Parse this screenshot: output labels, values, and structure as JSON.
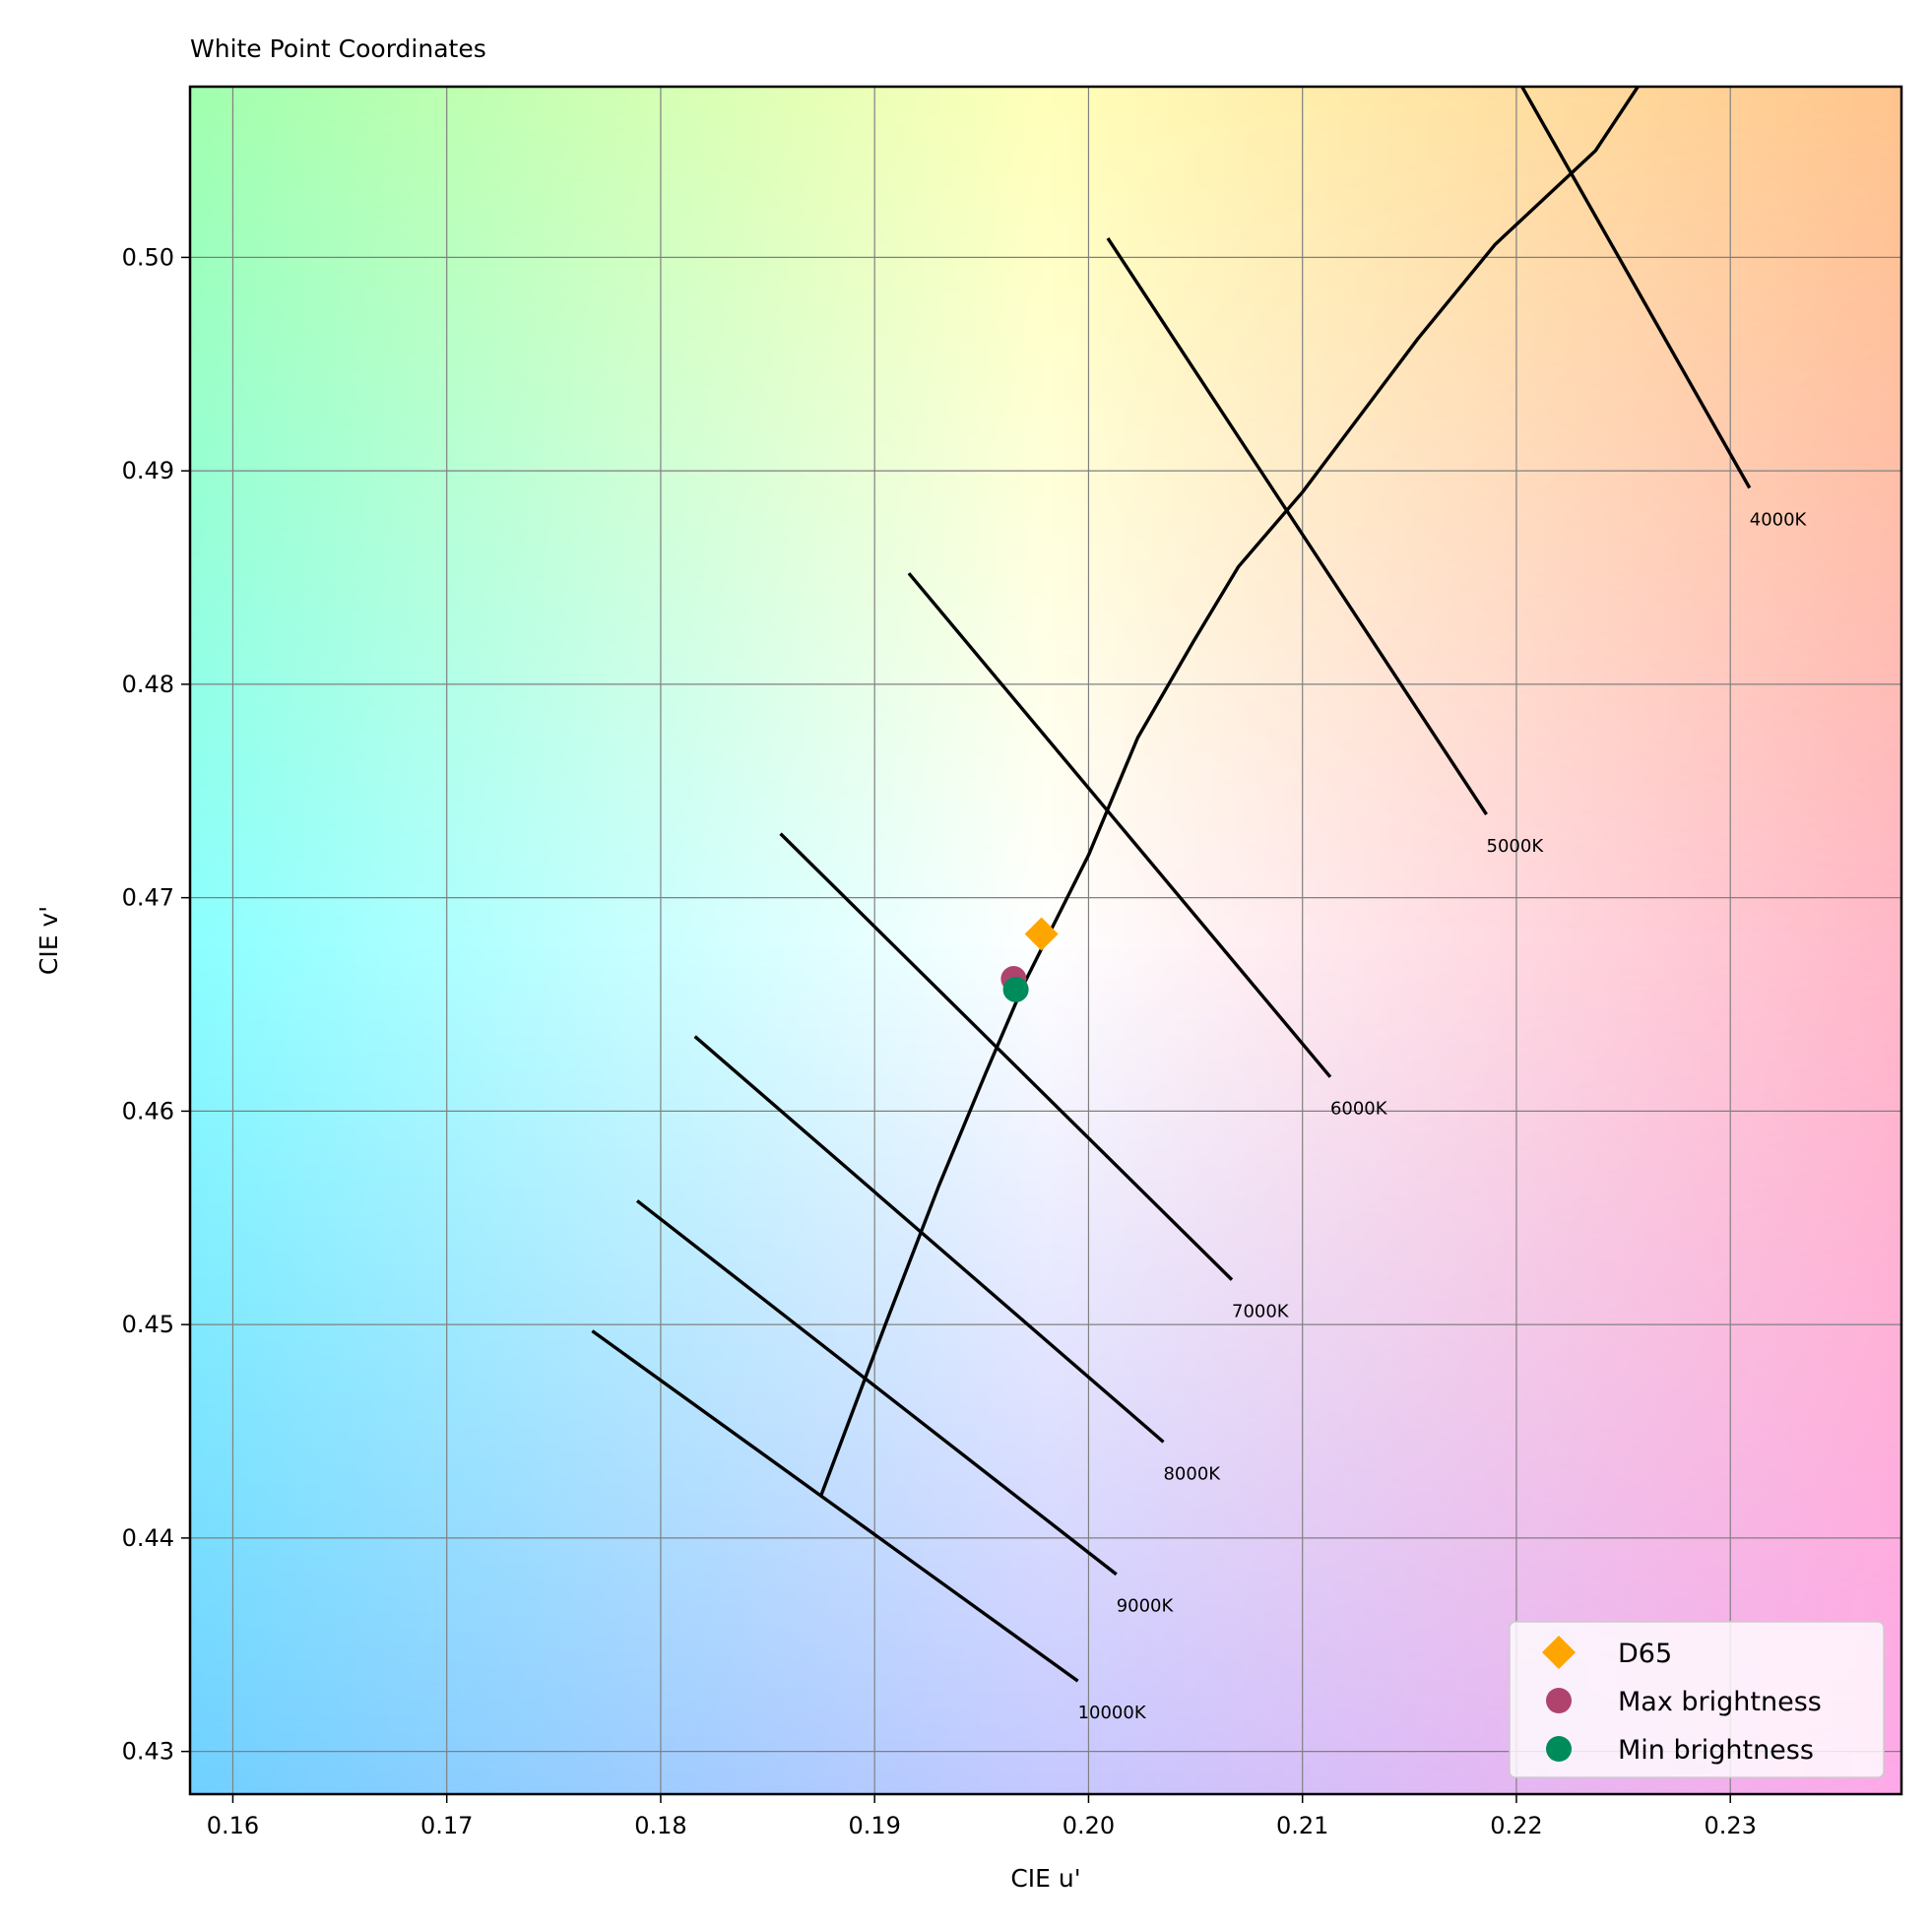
{
  "chart_data": {
    "type": "scatter",
    "title": "White Point Coordinates",
    "xlabel": "CIE u'",
    "ylabel": "CIE v'",
    "xlim": [
      0.158,
      0.238
    ],
    "ylim": [
      0.428,
      0.508
    ],
    "xticks": [
      0.16,
      0.17,
      0.18,
      0.19,
      0.2,
      0.21,
      0.22,
      0.23
    ],
    "xtick_labels": [
      "0.16",
      "0.17",
      "0.18",
      "0.19",
      "0.20",
      "0.21",
      "0.22",
      "0.23"
    ],
    "yticks": [
      0.43,
      0.44,
      0.45,
      0.46,
      0.47,
      0.48,
      0.49,
      0.5
    ],
    "ytick_labels": [
      "0.43",
      "0.44",
      "0.45",
      "0.46",
      "0.47",
      "0.48",
      "0.49",
      "0.50"
    ],
    "grid": true,
    "legend_position": "bottom-right",
    "planckian_locus": {
      "u": [
        0.1875,
        0.1905,
        0.193,
        0.1952,
        0.197,
        0.1985,
        0.2,
        0.2023,
        0.2049,
        0.207,
        0.21,
        0.2124,
        0.2154,
        0.219,
        0.2237,
        0.227
      ],
      "v": [
        0.442,
        0.45,
        0.4565,
        0.4618,
        0.466,
        0.469,
        0.472,
        0.4775,
        0.482,
        0.4855,
        0.489,
        0.4922,
        0.4962,
        0.5006,
        0.505,
        0.51
      ]
    },
    "isotherms": [
      {
        "label": "4000K",
        "u": [
          0.218,
          0.2309
        ],
        "v": [
          0.512,
          0.4892
        ]
      },
      {
        "label": "5000K",
        "u": [
          0.2009,
          0.2186
        ],
        "v": [
          0.5009,
          0.4739
        ]
      },
      {
        "label": "6000K",
        "u": [
          0.1916,
          0.2113
        ],
        "v": [
          0.4852,
          0.4616
        ]
      },
      {
        "label": "7000K",
        "u": [
          0.1856,
          0.2067
        ],
        "v": [
          0.473,
          0.4521
        ]
      },
      {
        "label": "8000K",
        "u": [
          0.1816,
          0.2035
        ],
        "v": [
          0.4635,
          0.4445
        ]
      },
      {
        "label": "9000K",
        "u": [
          0.1789,
          0.2013
        ],
        "v": [
          0.4558,
          0.4383
        ]
      },
      {
        "label": "10000K",
        "u": [
          0.1768,
          0.1995
        ],
        "v": [
          0.4497,
          0.4333
        ]
      }
    ],
    "series": [
      {
        "name": "D65",
        "marker": "diamond",
        "color": "#ffa500",
        "points": [
          {
            "u": 0.1978,
            "v": 0.4683
          }
        ]
      },
      {
        "name": "Max brightness",
        "marker": "circle",
        "color": "#b0436e",
        "points": [
          {
            "u": 0.1965,
            "v": 0.4662
          }
        ]
      },
      {
        "name": "Min brightness",
        "marker": "circle",
        "color": "#008b5a",
        "points": [
          {
            "u": 0.1966,
            "v": 0.4657
          }
        ]
      }
    ],
    "background_colors": {
      "top_left": "#a0ffae",
      "top_middle": "#ffffb8",
      "top_right": "#ffc48c",
      "middle_left": "#8cffff",
      "center": "#ffffff",
      "middle_right": "#ffb8c8",
      "bottom_left": "#70d0ff",
      "bottom_middle": "#c4c8ff",
      "bottom_right": "#ffa8e8"
    },
    "line_color": "#000000",
    "grid_color": "#808080"
  }
}
